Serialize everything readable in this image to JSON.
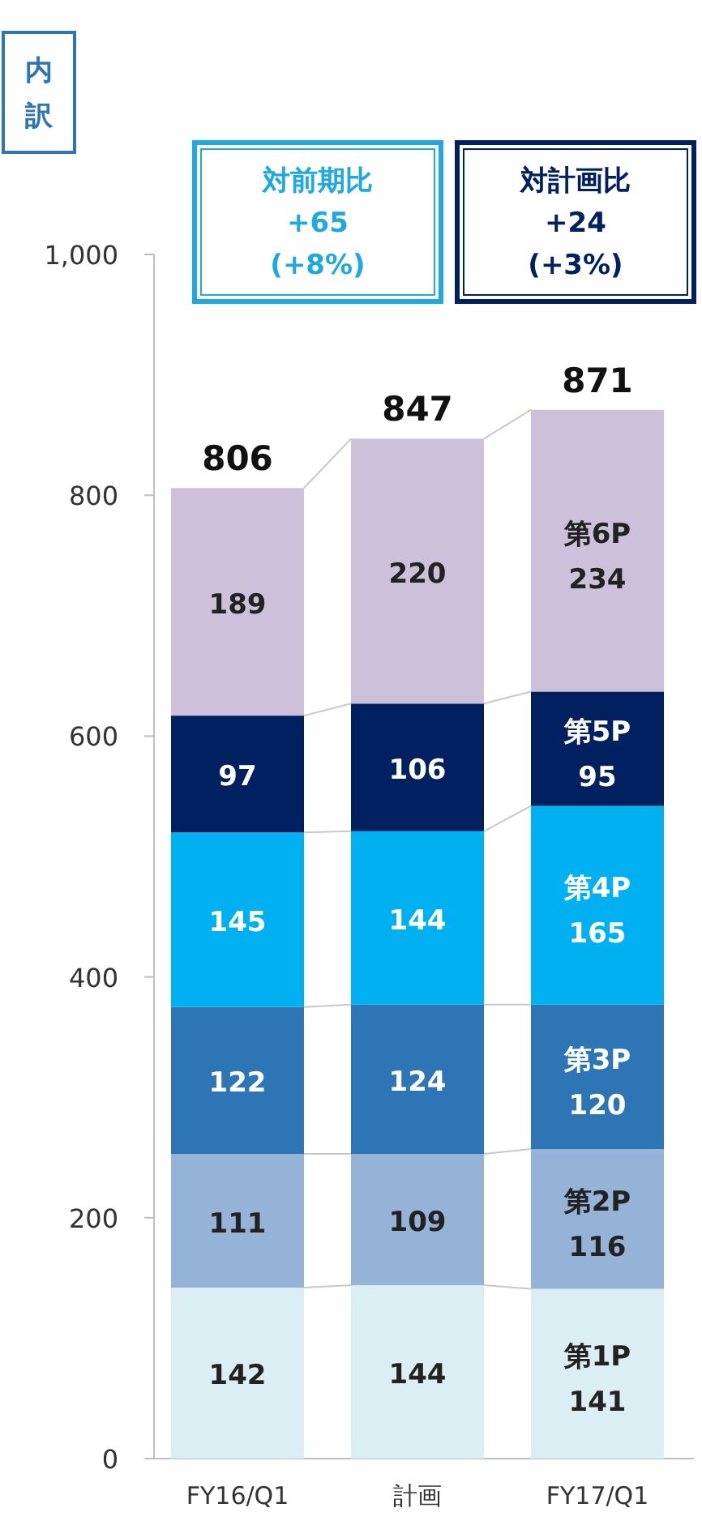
{
  "chart_data": {
    "type": "bar",
    "stacked": true,
    "categories": [
      "FY16/Q1",
      "計画",
      "FY17/Q1"
    ],
    "series": [
      {
        "name": "第1P",
        "color": "#daeef3",
        "values": [
          142,
          144,
          141
        ]
      },
      {
        "name": "第2P",
        "color": "#95b3d7",
        "values": [
          111,
          109,
          116
        ]
      },
      {
        "name": "第3P",
        "color": "#2e75b6",
        "values": [
          122,
          124,
          120
        ]
      },
      {
        "name": "第4P",
        "color": "#00b0f0",
        "values": [
          145,
          144,
          165
        ]
      },
      {
        "name": "第5P",
        "color": "#002060",
        "values": [
          97,
          106,
          95
        ]
      },
      {
        "name": "第6P",
        "color": "#ccc0da",
        "values": [
          189,
          220,
          234
        ]
      }
    ],
    "ylim": [
      0,
      1000
    ],
    "yticks": [
      0,
      200,
      400,
      600,
      800,
      {
        "value": 1000,
        "label": "1,000"
      }
    ],
    "grid": false,
    "data_labels": true,
    "totals": [
      "806",
      "847",
      "871"
    ],
    "annotations": [
      "内訳",
      "対前期比\n+65\n(+8%)",
      "対計画比\n+24\n(+3%)"
    ]
  }
}
